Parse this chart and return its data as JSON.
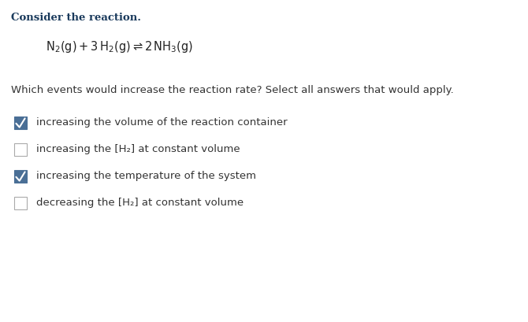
{
  "background_color": "#ffffff",
  "title_text": "Consider the reaction.",
  "title_color": "#1a3a5c",
  "title_fontsize": 9.5,
  "equation_fontsize": 10.5,
  "question_fontsize": 9.5,
  "label_fontsize": 9.5,
  "checkbox_color_checked": "#4a6f96",
  "checkbox_color_unchecked": "#ffffff",
  "checkbox_border_color": "#aaaaaa",
  "checkbox_border_color_checked": "#4a6f96",
  "label_color": "#333333",
  "checkboxes": [
    {
      "label": "increasing the volume of the reaction container",
      "checked": true
    },
    {
      "label": "increasing the [H₂] at constant volume",
      "checked": false
    },
    {
      "label": "increasing the temperature of the system",
      "checked": true
    },
    {
      "label": "decreasing the [H₂] at constant volume",
      "checked": false
    }
  ]
}
